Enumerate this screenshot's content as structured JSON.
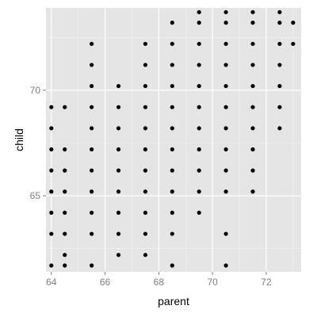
{
  "chart_data": {
    "type": "scatter",
    "title": "",
    "xlabel": "parent",
    "ylabel": "child",
    "xlim": [
      63.8,
      73.3
    ],
    "ylim": [
      61.4,
      73.9
    ],
    "xticks": [
      64,
      66,
      68,
      70,
      72
    ],
    "yticks": [
      65,
      70
    ],
    "grid": true,
    "colors": {
      "panel": "#e5e5e5",
      "grid_major": "#ffffff",
      "grid_minor": "#f2f2f2",
      "point": "#000000",
      "tick_label": "#7f7f7f"
    },
    "points": [
      {
        "x": 64.0,
        "y": 61.7
      },
      {
        "x": 64.0,
        "y": 63.2
      },
      {
        "x": 64.0,
        "y": 64.2
      },
      {
        "x": 64.0,
        "y": 65.2
      },
      {
        "x": 64.0,
        "y": 66.2
      },
      {
        "x": 64.0,
        "y": 67.2
      },
      {
        "x": 64.0,
        "y": 68.2
      },
      {
        "x": 64.0,
        "y": 69.2
      },
      {
        "x": 64.5,
        "y": 61.7
      },
      {
        "x": 64.5,
        "y": 62.2
      },
      {
        "x": 64.5,
        "y": 63.2
      },
      {
        "x": 64.5,
        "y": 64.2
      },
      {
        "x": 64.5,
        "y": 65.2
      },
      {
        "x": 64.5,
        "y": 66.2
      },
      {
        "x": 64.5,
        "y": 67.2
      },
      {
        "x": 64.5,
        "y": 69.2
      },
      {
        "x": 65.5,
        "y": 61.7
      },
      {
        "x": 65.5,
        "y": 63.2
      },
      {
        "x": 65.5,
        "y": 64.2
      },
      {
        "x": 65.5,
        "y": 65.2
      },
      {
        "x": 65.5,
        "y": 66.2
      },
      {
        "x": 65.5,
        "y": 67.2
      },
      {
        "x": 65.5,
        "y": 68.2
      },
      {
        "x": 65.5,
        "y": 69.2
      },
      {
        "x": 65.5,
        "y": 70.2
      },
      {
        "x": 65.5,
        "y": 71.2
      },
      {
        "x": 65.5,
        "y": 72.2
      },
      {
        "x": 66.5,
        "y": 62.2
      },
      {
        "x": 66.5,
        "y": 63.2
      },
      {
        "x": 66.5,
        "y": 64.2
      },
      {
        "x": 66.5,
        "y": 65.2
      },
      {
        "x": 66.5,
        "y": 66.2
      },
      {
        "x": 66.5,
        "y": 67.2
      },
      {
        "x": 66.5,
        "y": 68.2
      },
      {
        "x": 66.5,
        "y": 69.2
      },
      {
        "x": 66.5,
        "y": 70.2
      },
      {
        "x": 67.5,
        "y": 62.2
      },
      {
        "x": 67.5,
        "y": 63.2
      },
      {
        "x": 67.5,
        "y": 64.2
      },
      {
        "x": 67.5,
        "y": 65.2
      },
      {
        "x": 67.5,
        "y": 66.2
      },
      {
        "x": 67.5,
        "y": 67.2
      },
      {
        "x": 67.5,
        "y": 68.2
      },
      {
        "x": 67.5,
        "y": 69.2
      },
      {
        "x": 67.5,
        "y": 70.2
      },
      {
        "x": 67.5,
        "y": 71.2
      },
      {
        "x": 67.5,
        "y": 72.2
      },
      {
        "x": 68.5,
        "y": 61.7
      },
      {
        "x": 68.5,
        "y": 63.2
      },
      {
        "x": 68.5,
        "y": 64.2
      },
      {
        "x": 68.5,
        "y": 65.2
      },
      {
        "x": 68.5,
        "y": 66.2
      },
      {
        "x": 68.5,
        "y": 67.2
      },
      {
        "x": 68.5,
        "y": 68.2
      },
      {
        "x": 68.5,
        "y": 69.2
      },
      {
        "x": 68.5,
        "y": 70.2
      },
      {
        "x": 68.5,
        "y": 71.2
      },
      {
        "x": 68.5,
        "y": 72.2
      },
      {
        "x": 68.5,
        "y": 73.2
      },
      {
        "x": 69.5,
        "y": 64.2
      },
      {
        "x": 69.5,
        "y": 65.2
      },
      {
        "x": 69.5,
        "y": 66.2
      },
      {
        "x": 69.5,
        "y": 67.2
      },
      {
        "x": 69.5,
        "y": 68.2
      },
      {
        "x": 69.5,
        "y": 69.2
      },
      {
        "x": 69.5,
        "y": 70.2
      },
      {
        "x": 69.5,
        "y": 71.2
      },
      {
        "x": 69.5,
        "y": 72.2
      },
      {
        "x": 69.5,
        "y": 73.2
      },
      {
        "x": 69.5,
        "y": 73.7
      },
      {
        "x": 70.5,
        "y": 61.7
      },
      {
        "x": 70.5,
        "y": 63.2
      },
      {
        "x": 70.5,
        "y": 65.2
      },
      {
        "x": 70.5,
        "y": 66.2
      },
      {
        "x": 70.5,
        "y": 67.2
      },
      {
        "x": 70.5,
        "y": 68.2
      },
      {
        "x": 70.5,
        "y": 69.2
      },
      {
        "x": 70.5,
        "y": 70.2
      },
      {
        "x": 70.5,
        "y": 71.2
      },
      {
        "x": 70.5,
        "y": 72.2
      },
      {
        "x": 70.5,
        "y": 73.2
      },
      {
        "x": 70.5,
        "y": 73.7
      },
      {
        "x": 71.5,
        "y": 65.2
      },
      {
        "x": 71.5,
        "y": 66.2
      },
      {
        "x": 71.5,
        "y": 67.2
      },
      {
        "x": 71.5,
        "y": 68.2
      },
      {
        "x": 71.5,
        "y": 69.2
      },
      {
        "x": 71.5,
        "y": 70.2
      },
      {
        "x": 71.5,
        "y": 71.2
      },
      {
        "x": 71.5,
        "y": 72.2
      },
      {
        "x": 71.5,
        "y": 73.2
      },
      {
        "x": 71.5,
        "y": 73.7
      },
      {
        "x": 72.5,
        "y": 68.2
      },
      {
        "x": 72.5,
        "y": 69.2
      },
      {
        "x": 72.5,
        "y": 70.2
      },
      {
        "x": 72.5,
        "y": 71.2
      },
      {
        "x": 72.5,
        "y": 72.2
      },
      {
        "x": 72.5,
        "y": 73.2
      },
      {
        "x": 72.5,
        "y": 73.7
      },
      {
        "x": 73.0,
        "y": 72.2
      },
      {
        "x": 73.0,
        "y": 73.2
      }
    ]
  }
}
